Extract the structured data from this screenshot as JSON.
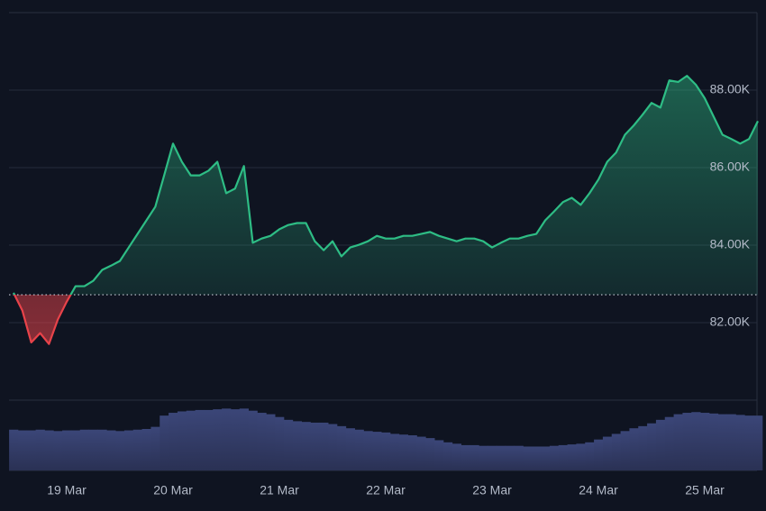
{
  "chart_data": {
    "type": "baseline-area",
    "categories": [
      null,
      null,
      null,
      null,
      null,
      null,
      "19 Mar",
      null,
      null,
      null,
      null,
      null,
      null,
      null,
      null,
      null,
      null,
      null,
      "20 Mar",
      null,
      null,
      null,
      null,
      null,
      null,
      null,
      null,
      null,
      null,
      null,
      "21 Mar",
      null,
      null,
      null,
      null,
      null,
      null,
      null,
      null,
      null,
      null,
      null,
      "22 Mar",
      null,
      null,
      null,
      null,
      null,
      null,
      null,
      null,
      null,
      null,
      null,
      "23 Mar",
      null,
      null,
      null,
      null,
      null,
      null,
      null,
      null,
      null,
      null,
      null,
      "24 Mar",
      null,
      null,
      null,
      null,
      null,
      null,
      null,
      null,
      null,
      null,
      null,
      "25 Mar",
      null,
      null,
      null,
      null,
      null,
      null
    ],
    "series": [
      {
        "values": [
          82770,
          82310,
          81490,
          81730,
          81450,
          82080,
          82540,
          82940,
          82940,
          83080,
          83360,
          83470,
          83590,
          83940,
          84290,
          84640,
          84990,
          85800,
          86620,
          86150,
          85800,
          85800,
          85920,
          86150,
          85340,
          85460,
          86040,
          84060,
          84170,
          84240,
          84410,
          84520,
          84570,
          84570,
          84100,
          83870,
          84100,
          83710,
          83940,
          84010,
          84100,
          84240,
          84170,
          84170,
          84240,
          84240,
          84290,
          84340,
          84240,
          84170,
          84100,
          84170,
          84170,
          84100,
          83940,
          84060,
          84170,
          84170,
          84240,
          84290,
          84640,
          84870,
          85110,
          85220,
          85040,
          85340,
          85690,
          86150,
          86390,
          86850,
          87090,
          87370,
          87670,
          87550,
          88250,
          88210,
          88370,
          88140,
          87790,
          87320,
          86850,
          86740,
          86620,
          86740,
          87200
        ],
        "up_color": "#2ebd85",
        "down_color": "#e8434a"
      }
    ],
    "baseline": 82720,
    "volume": {
      "values": [
        58,
        57,
        57,
        58,
        57,
        56,
        57,
        57,
        58,
        58,
        58,
        57,
        56,
        57,
        58,
        59,
        62,
        78,
        82,
        84,
        85,
        86,
        86,
        87,
        88,
        87,
        88,
        85,
        82,
        80,
        76,
        72,
        70,
        69,
        68,
        68,
        66,
        63,
        60,
        58,
        56,
        55,
        54,
        52,
        51,
        50,
        48,
        46,
        43,
        40,
        38,
        36,
        36,
        35,
        35,
        35,
        35,
        35,
        34,
        34,
        34,
        35,
        36,
        37,
        38,
        40,
        44,
        48,
        52,
        56,
        60,
        63,
        67,
        72,
        76,
        80,
        82,
        83,
        82,
        81,
        80,
        80,
        79,
        78,
        78
      ],
      "color": "#323c66"
    },
    "volume_lim": [
      0,
      100
    ],
    "ylim": [
      80000,
      90000
    ],
    "yticks": [
      {
        "value": 82000,
        "label": "82.00K"
      },
      {
        "value": 84000,
        "label": "84.00K"
      },
      {
        "value": 86000,
        "label": "86.00K"
      },
      {
        "value": 88000,
        "label": "88.00K"
      }
    ],
    "grid": true
  }
}
